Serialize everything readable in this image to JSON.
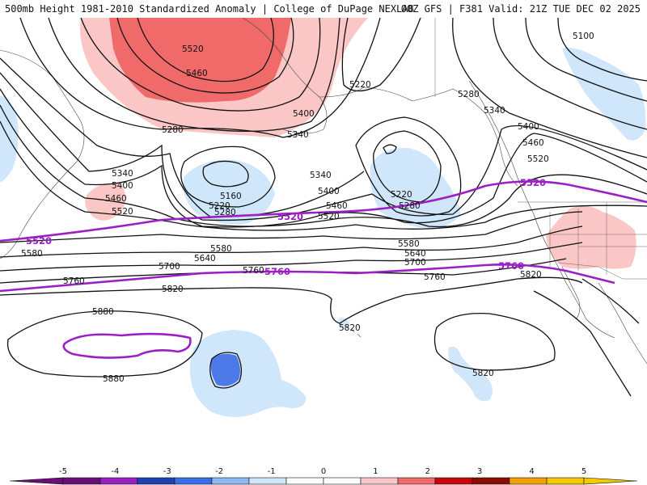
{
  "header": {
    "title_left": "500mb Height 1981-2010 Standardized Anomaly | College of DuPage NEXLAB",
    "title_right": "00Z GFS | F381 Valid: 21Z TUE DEC 02 2025"
  },
  "map": {
    "contour_labels": [
      "5100",
      "5160",
      "5220",
      "5280",
      "5340",
      "5400",
      "5460",
      "5520",
      "5580",
      "5640",
      "5700",
      "5760",
      "5820",
      "5880"
    ],
    "highlighted_labels": [
      "5520",
      "5760"
    ],
    "colors": {
      "contour": "#111111",
      "highlight": "#9b1fc4",
      "anomaly_pos_1": "#fbc6c6",
      "anomaly_pos_2": "#f06a6a",
      "anomaly_neg_1": "#cfe6fb",
      "anomaly_neg_2": "#4c78e8"
    }
  },
  "colorbar": {
    "ticks": [
      "-5",
      "-4",
      "-3",
      "-2",
      "-1",
      "0",
      "1",
      "2",
      "3",
      "4",
      "5"
    ],
    "colors": [
      "#6a0d7a",
      "#9b1fc4",
      "#1f3fb5",
      "#3a6ee8",
      "#8fb8f3",
      "#cfe6fb",
      "#ffffff",
      "#ffffff",
      "#fbc6c6",
      "#f06a6a",
      "#c9060a",
      "#8c0a00",
      "#f6a000",
      "#f7c800"
    ]
  }
}
